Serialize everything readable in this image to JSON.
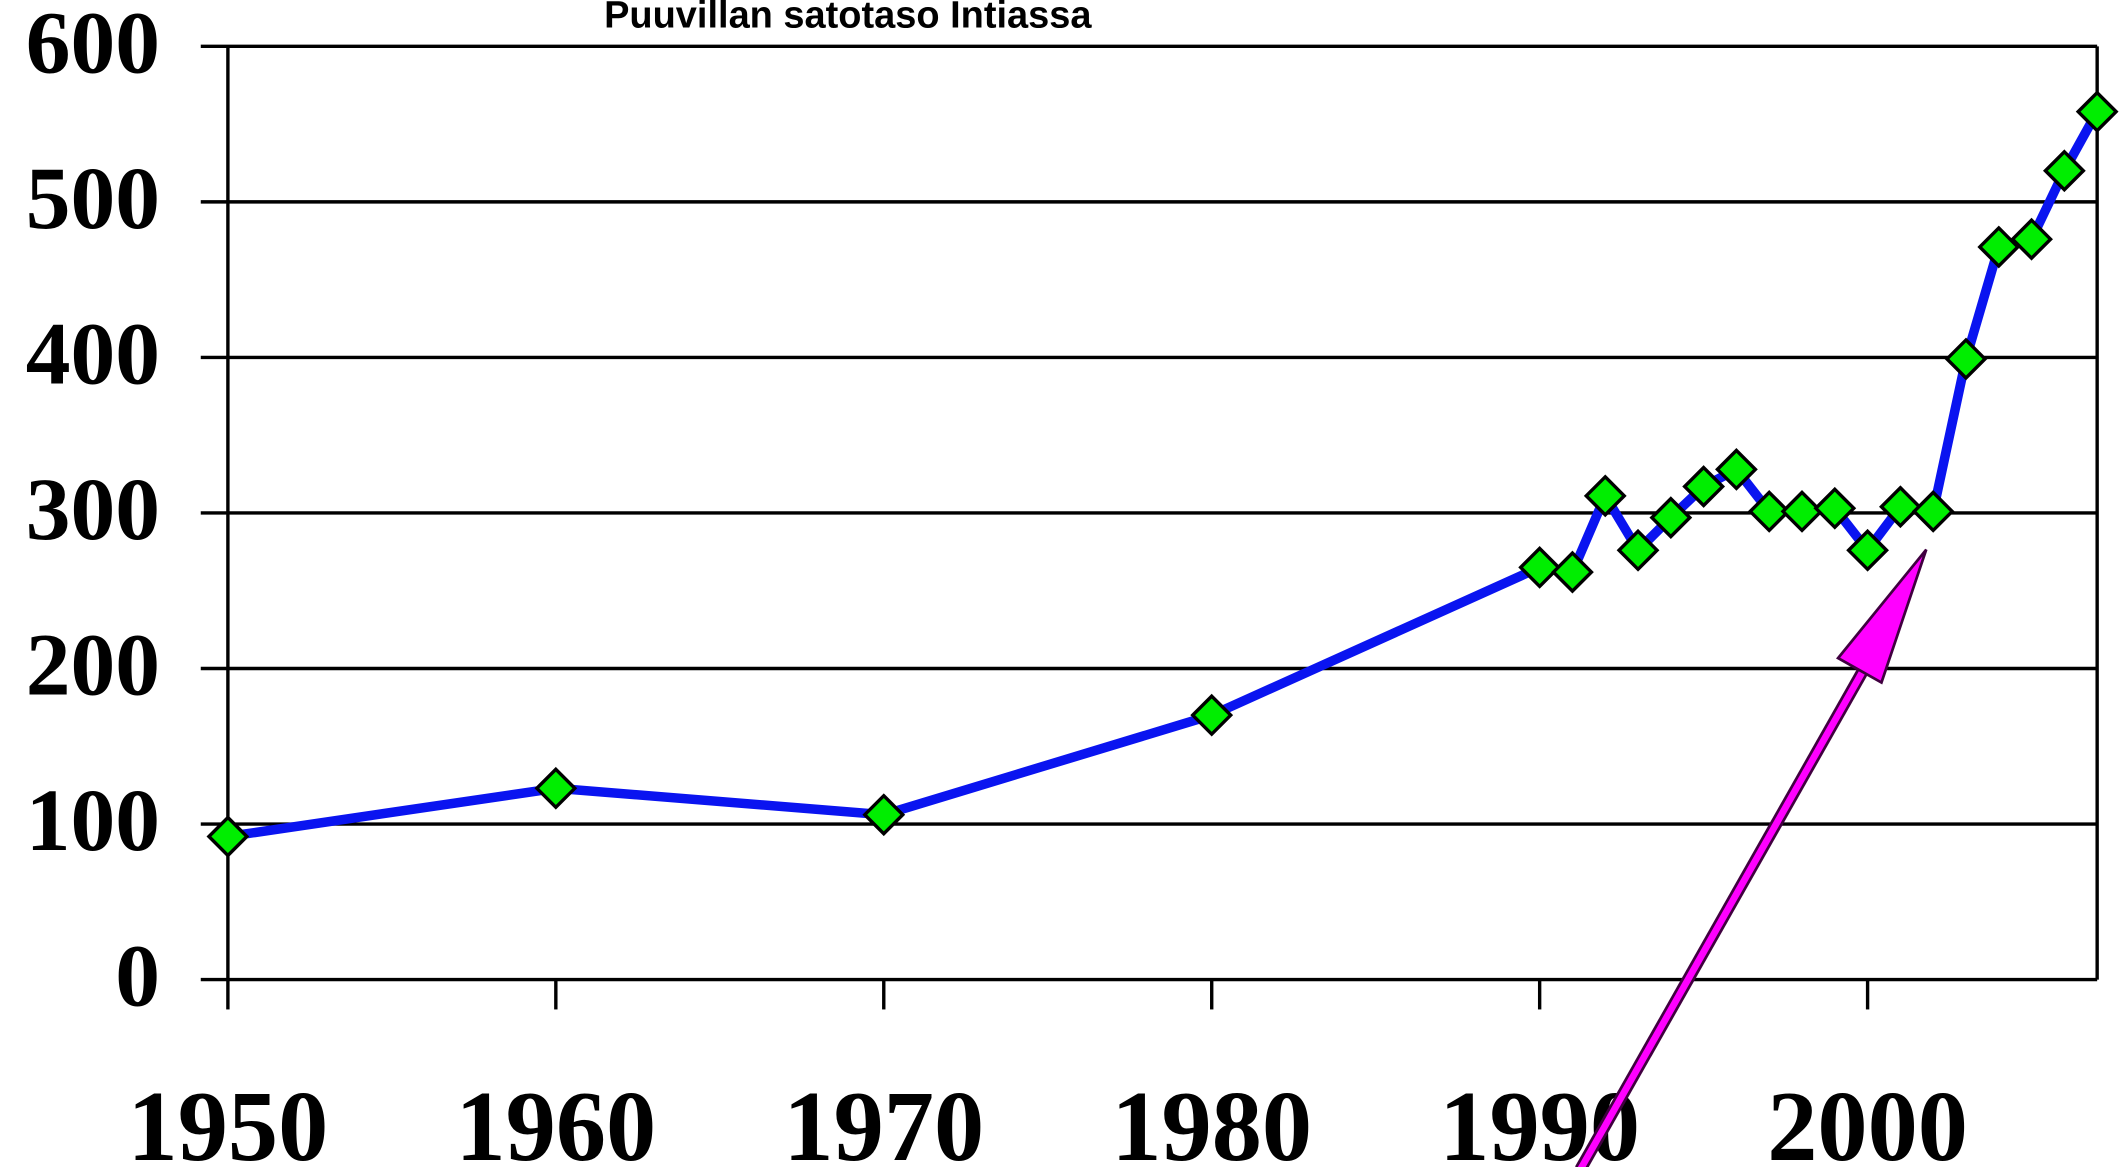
{
  "chart_data": {
    "type": "line",
    "title": "Puuvillan satotaso Intiassa",
    "x": [
      1950,
      1960,
      1970,
      1980,
      1990,
      1991,
      1992,
      1993,
      1994,
      1995,
      1996,
      1997,
      1998,
      1999,
      2000,
      2001,
      2002,
      2003,
      2004,
      2005,
      2006,
      2007
    ],
    "series": [
      {
        "name": "Puuvilla",
        "color": "#0a14f0",
        "marker_color": "#00ee00",
        "values": [
          92,
          123,
          106,
          170,
          265,
          262,
          311,
          276,
          297,
          317,
          328,
          301,
          301,
          303,
          276,
          304,
          301,
          399,
          471,
          476,
          520,
          558
        ]
      }
    ],
    "xlim": [
      1950,
      2007
    ],
    "xticks": [
      1950,
      1960,
      1970,
      1980,
      1990,
      2000
    ],
    "ylim": [
      0,
      600
    ],
    "yticks": [
      0,
      100,
      200,
      300,
      400,
      500,
      600
    ],
    "grid": true
  }
}
